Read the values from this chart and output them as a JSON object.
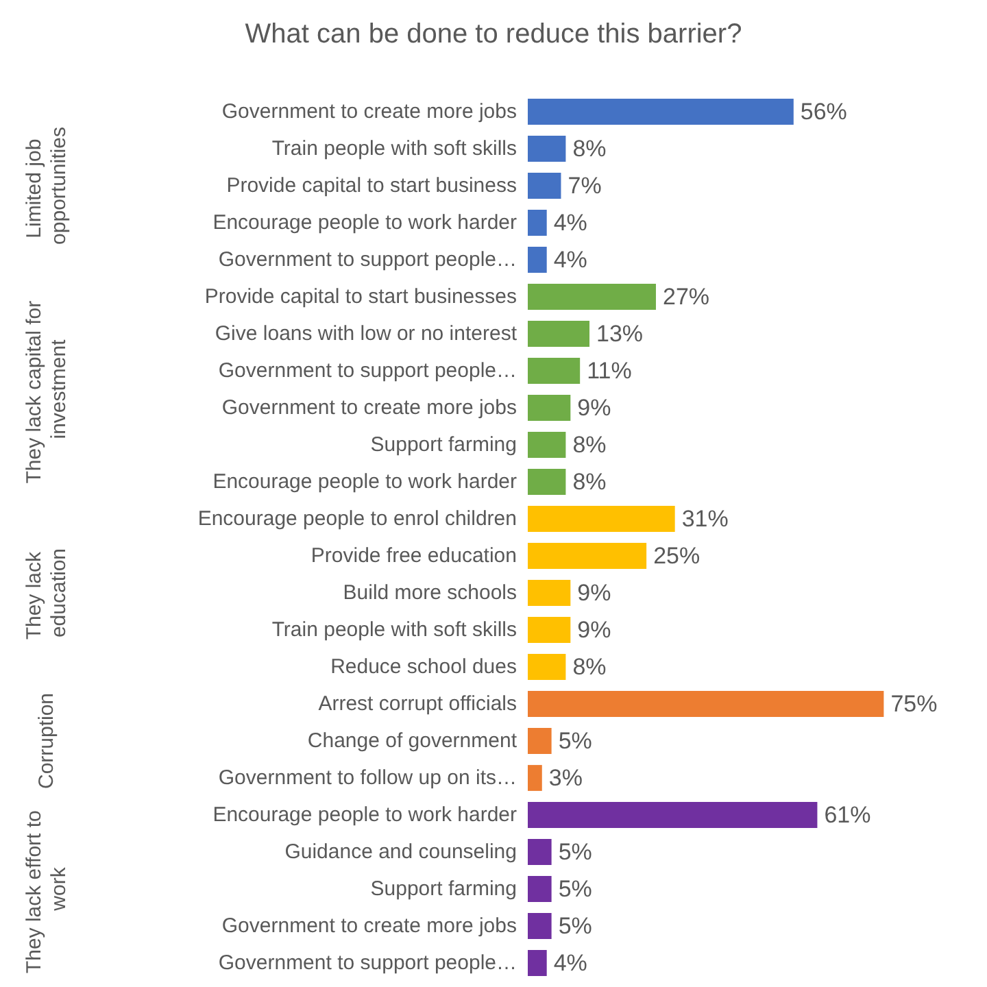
{
  "chart_data": {
    "type": "bar",
    "orientation": "horizontal",
    "title": "What can be done to reduce this barrier?",
    "categories": [
      "Government to create more jobs",
      "Train people with soft skills",
      "Provide capital to start business",
      "Encourage people to work harder",
      "Government to support people…",
      "Provide capital to start businesses",
      "Give loans with low or no interest",
      "Government to support people…",
      "Government to create more jobs",
      "Support farming",
      "Encourage people to work harder",
      "Encourage people to enrol children",
      "Provide free education",
      "Build more schools",
      "Train people with soft skills",
      "Reduce school dues",
      "Arrest corrupt officials",
      "Change of government",
      "Government to follow up on its…",
      "Encourage people to work harder",
      "Guidance and counseling",
      "Support farming",
      "Government to create more jobs",
      "Government to support people…"
    ],
    "values": [
      56,
      8,
      7,
      4,
      4,
      27,
      13,
      11,
      9,
      8,
      8,
      31,
      25,
      9,
      9,
      8,
      75,
      5,
      3,
      61,
      5,
      5,
      5,
      4
    ],
    "value_labels": [
      "56%",
      "8%",
      "7%",
      "4%",
      "4%",
      "27%",
      "13%",
      "11%",
      "9%",
      "8%",
      "8%",
      "31%",
      "25%",
      "9%",
      "9%",
      "8%",
      "75%",
      "5%",
      "3%",
      "61%",
      "5%",
      "5%",
      "5%",
      "4%"
    ],
    "colors": [
      "#4472c4",
      "#4472c4",
      "#4472c4",
      "#4472c4",
      "#4472c4",
      "#70ad47",
      "#70ad47",
      "#70ad47",
      "#70ad47",
      "#70ad47",
      "#70ad47",
      "#ffc000",
      "#ffc000",
      "#ffc000",
      "#ffc000",
      "#ffc000",
      "#ed7d31",
      "#ed7d31",
      "#ed7d31",
      "#7030a0",
      "#7030a0",
      "#7030a0",
      "#7030a0",
      "#7030a0"
    ],
    "annotations": [
      "Limited job opportunities",
      "They lack capital for investment",
      "They lack education",
      "Corruption",
      "They lack effort to work"
    ]
  }
}
